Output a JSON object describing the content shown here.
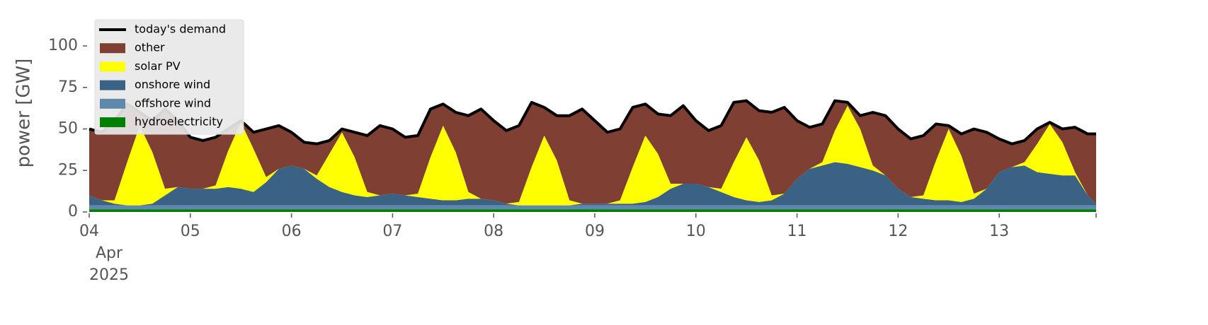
{
  "chart_data": {
    "type": "area",
    "stacked": true,
    "ylabel": "power [GW]",
    "ylim": [
      0,
      120
    ],
    "yticks": [
      0,
      25,
      50,
      75,
      100
    ],
    "xlim": [
      "2025-04-04 00:00",
      "2025-04-13 23:00"
    ],
    "xticks": [
      {
        "value": "2025-04-04 00:00",
        "label": [
          "04",
          "Apr",
          "2025"
        ]
      },
      {
        "value": "2025-04-05 00:00",
        "label": "05"
      },
      {
        "value": "2025-04-06 00:00",
        "label": "06"
      },
      {
        "value": "2025-04-07 00:00",
        "label": "07"
      },
      {
        "value": "2025-04-08 00:00",
        "label": "08"
      },
      {
        "value": "2025-04-09 00:00",
        "label": "09"
      },
      {
        "value": "2025-04-10 00:00",
        "label": "10"
      },
      {
        "value": "2025-04-11 00:00",
        "label": "11"
      },
      {
        "value": "2025-04-12 00:00",
        "label": "12"
      },
      {
        "value": "2025-04-13 00:00",
        "label": "13"
      }
    ],
    "grid": false,
    "legend": "upper left",
    "x": [
      "2025-04-04 00:00",
      "2025-04-04 03:00",
      "2025-04-04 06:00",
      "2025-04-04 09:00",
      "2025-04-04 12:00",
      "2025-04-04 15:00",
      "2025-04-04 18:00",
      "2025-04-04 21:00",
      "2025-04-05 00:00",
      "2025-04-05 03:00",
      "2025-04-05 06:00",
      "2025-04-05 09:00",
      "2025-04-05 12:00",
      "2025-04-05 15:00",
      "2025-04-05 18:00",
      "2025-04-05 21:00",
      "2025-04-06 00:00",
      "2025-04-06 03:00",
      "2025-04-06 06:00",
      "2025-04-06 09:00",
      "2025-04-06 12:00",
      "2025-04-06 15:00",
      "2025-04-06 18:00",
      "2025-04-06 21:00",
      "2025-04-07 00:00",
      "2025-04-07 03:00",
      "2025-04-07 06:00",
      "2025-04-07 09:00",
      "2025-04-07 12:00",
      "2025-04-07 15:00",
      "2025-04-07 18:00",
      "2025-04-07 21:00",
      "2025-04-08 00:00",
      "2025-04-08 03:00",
      "2025-04-08 06:00",
      "2025-04-08 09:00",
      "2025-04-08 12:00",
      "2025-04-08 15:00",
      "2025-04-08 18:00",
      "2025-04-08 21:00",
      "2025-04-09 00:00",
      "2025-04-09 03:00",
      "2025-04-09 06:00",
      "2025-04-09 09:00",
      "2025-04-09 12:00",
      "2025-04-09 15:00",
      "2025-04-09 18:00",
      "2025-04-09 21:00",
      "2025-04-10 00:00",
      "2025-04-10 03:00",
      "2025-04-10 06:00",
      "2025-04-10 09:00",
      "2025-04-10 12:00",
      "2025-04-10 15:00",
      "2025-04-10 18:00",
      "2025-04-10 21:00",
      "2025-04-11 00:00",
      "2025-04-11 03:00",
      "2025-04-11 06:00",
      "2025-04-11 09:00",
      "2025-04-11 12:00",
      "2025-04-11 15:00",
      "2025-04-11 18:00",
      "2025-04-11 21:00",
      "2025-04-12 00:00",
      "2025-04-12 03:00",
      "2025-04-12 06:00",
      "2025-04-12 09:00",
      "2025-04-12 12:00",
      "2025-04-12 15:00",
      "2025-04-12 18:00",
      "2025-04-12 21:00",
      "2025-04-13 00:00",
      "2025-04-13 03:00",
      "2025-04-13 06:00",
      "2025-04-13 09:00",
      "2025-04-13 12:00",
      "2025-04-13 15:00",
      "2025-04-13 18:00",
      "2025-04-13 21:00",
      "2025-04-13 23:00"
    ],
    "series": [
      {
        "name": "hydroelectricity",
        "color": "#008000",
        "values": [
          1.5,
          1.5,
          1.5,
          1.5,
          1.5,
          1.5,
          1.5,
          1.5,
          1.5,
          1.5,
          1.5,
          1.5,
          1.5,
          1.5,
          1.5,
          1.5,
          1.5,
          1.5,
          1.5,
          1.5,
          1.5,
          1.5,
          1.5,
          1.5,
          1.5,
          1.5,
          1.5,
          1.5,
          1.5,
          1.5,
          1.5,
          1.5,
          1.5,
          1.5,
          1.5,
          1.5,
          1.5,
          1.5,
          1.5,
          1.5,
          1.5,
          1.5,
          1.5,
          1.5,
          1.5,
          1.5,
          1.5,
          1.5,
          1.5,
          1.5,
          1.5,
          1.5,
          1.5,
          1.5,
          1.5,
          1.5,
          1.5,
          1.5,
          1.5,
          1.5,
          1.5,
          1.5,
          1.5,
          1.5,
          1.5,
          1.5,
          1.5,
          1.5,
          1.5,
          1.5,
          1.5,
          1.5,
          1.5,
          1.5,
          1.5,
          1.5,
          1.5,
          1.5,
          1.5,
          1.5,
          1.5
        ]
      },
      {
        "name": "offshore wind",
        "color": "#5f88ac",
        "values": [
          2.5,
          2.5,
          2.5,
          2.5,
          2.5,
          2.5,
          2.5,
          2.5,
          2.5,
          2.5,
          2.5,
          2.5,
          2.5,
          2.5,
          2.5,
          2.5,
          2.5,
          2.5,
          2.5,
          2.5,
          2.5,
          2.5,
          2.5,
          2.5,
          2.5,
          2.5,
          2.5,
          2.5,
          2.5,
          2.5,
          2.5,
          2.5,
          2.5,
          2.5,
          2.5,
          2.5,
          2.5,
          2.5,
          2.5,
          2.5,
          2.5,
          2.5,
          2.5,
          2.5,
          2.5,
          2.5,
          2.5,
          2.5,
          2.5,
          2.5,
          2.5,
          2.5,
          2.5,
          2.5,
          2.5,
          2.5,
          2.5,
          2.5,
          2.5,
          2.5,
          2.5,
          2.5,
          2.5,
          2.5,
          2.5,
          2.5,
          2.5,
          2.5,
          2.5,
          2.5,
          2.5,
          2.5,
          2.5,
          2.5,
          2.5,
          2.5,
          2.5,
          2.5,
          2.5,
          2.5,
          2.5
        ]
      },
      {
        "name": "onshore wind",
        "color": "#3a6285",
        "values": [
          6,
          3,
          1,
          0,
          0,
          1,
          6,
          11,
          10,
          10,
          10,
          11,
          10,
          8,
          14,
          22,
          24,
          22,
          16,
          11,
          8,
          6,
          5,
          6,
          7,
          6,
          5,
          4,
          3,
          3,
          4,
          4,
          3,
          1,
          0,
          0,
          0,
          0,
          0,
          1,
          1,
          1,
          1,
          1,
          2,
          5,
          10,
          13,
          13,
          11,
          8,
          5,
          3,
          2,
          3,
          7,
          16,
          22,
          24,
          26,
          25,
          23,
          21,
          18,
          10,
          5,
          4,
          3,
          3,
          2,
          4,
          10,
          20,
          23,
          24,
          20,
          19,
          18,
          18,
          6,
          1
        ]
      },
      {
        "name": "solar PV",
        "color": "#ffff00",
        "values": [
          0,
          0,
          2,
          26,
          48,
          31,
          4,
          0,
          0,
          0,
          2,
          22,
          40,
          26,
          3,
          0,
          0,
          0,
          2,
          20,
          36,
          23,
          3,
          0,
          0,
          0,
          2,
          25,
          45,
          29,
          4,
          0,
          0,
          0,
          2,
          23,
          42,
          27,
          3,
          0,
          0,
          0,
          2,
          22,
          40,
          26,
          3,
          0,
          0,
          0,
          2,
          21,
          38,
          25,
          3,
          0,
          0,
          0,
          2,
          19,
          35,
          23,
          3,
          0,
          0,
          0,
          2,
          24,
          43,
          28,
          3,
          0,
          0,
          0,
          2,
          17,
          30,
          20,
          2,
          0,
          0
        ]
      },
      {
        "name": "other",
        "color": "#7f3f32",
        "values": [
          40,
          41,
          48,
          35,
          8,
          19,
          48,
          40,
          31,
          29,
          29,
          13,
          1,
          10,
          29,
          26,
          20,
          16,
          19,
          8,
          2,
          15,
          34,
          42,
          39,
          35,
          35,
          29,
          13,
          24,
          46,
          54,
          48,
          44,
          46,
          39,
          17,
          27,
          51,
          57,
          50,
          43,
          43,
          36,
          19,
          24,
          41,
          47,
          38,
          34,
          38,
          36,
          22,
          30,
          50,
          52,
          35,
          25,
          23,
          18,
          2,
          8,
          32,
          36,
          36,
          35,
          36,
          22,
          2,
          13,
          39,
          34,
          20,
          14,
          13,
          9,
          1,
          8,
          27,
          37,
          42
        ]
      }
    ],
    "demand": {
      "name": "today's demand",
      "color": "#000000",
      "values": [
        50,
        48,
        55,
        65,
        60,
        55,
        62,
        55,
        45,
        43,
        45,
        50,
        55,
        48,
        50,
        52,
        48,
        42,
        41,
        43,
        50,
        48,
        46,
        52,
        50,
        45,
        46,
        62,
        65,
        60,
        58,
        62,
        55,
        49,
        52,
        66,
        63,
        58,
        58,
        62,
        55,
        48,
        50,
        63,
        65,
        59,
        58,
        64,
        55,
        49,
        52,
        66,
        67,
        61,
        60,
        63,
        55,
        51,
        53,
        67,
        66,
        58,
        60,
        58,
        50,
        44,
        46,
        53,
        52,
        47,
        50,
        48,
        44,
        41,
        43,
        50,
        54,
        50,
        51,
        47,
        47
      ]
    }
  }
}
